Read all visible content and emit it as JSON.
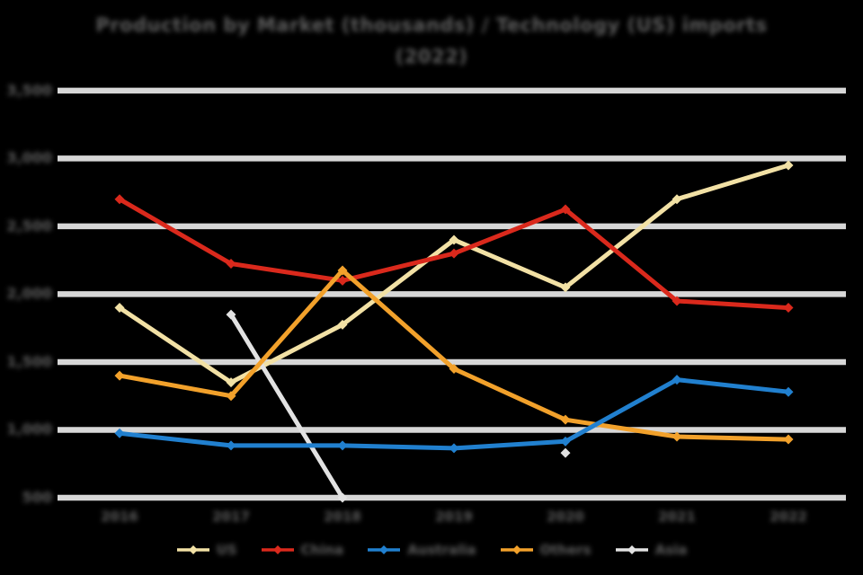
{
  "chart_data": {
    "type": "line",
    "title": "Production by Market (thousands) / Technology (US) imports",
    "subtitle": "(2022)",
    "categories": [
      "2016",
      "2017",
      "2018",
      "2019",
      "2020",
      "2021",
      "2022"
    ],
    "yticks": [
      "500",
      "1,000",
      "1,500",
      "2,000",
      "2,500",
      "3,000",
      "3,500"
    ],
    "ylim": [
      500,
      3500
    ],
    "ytick_step": 500,
    "grid": "horizontal-only",
    "legend_position": "bottom",
    "marker": "diamond",
    "series": [
      {
        "name": "US",
        "color": "#f2e1a5",
        "values": [
          1900,
          1350,
          1775,
          2400,
          2050,
          2700,
          2950
        ]
      },
      {
        "name": "China",
        "color": "#da291c",
        "values": [
          2700,
          2225,
          2100,
          2300,
          2625,
          1950,
          1900
        ]
      },
      {
        "name": "Australia",
        "color": "#2180cf",
        "values": [
          975,
          885,
          885,
          865,
          915,
          1370,
          1280
        ]
      },
      {
        "name": "Others",
        "color": "#f2a12b",
        "values": [
          1400,
          1250,
          2175,
          1450,
          1075,
          950,
          930
        ]
      },
      {
        "name": "Asia",
        "color": "#e2e2e2",
        "values": [
          null,
          1850,
          500,
          null,
          830,
          null,
          null
        ]
      }
    ]
  },
  "style": {
    "background": "#000000",
    "gridline_color": "#d7d7d7",
    "text_color": "#5d5d5d"
  }
}
